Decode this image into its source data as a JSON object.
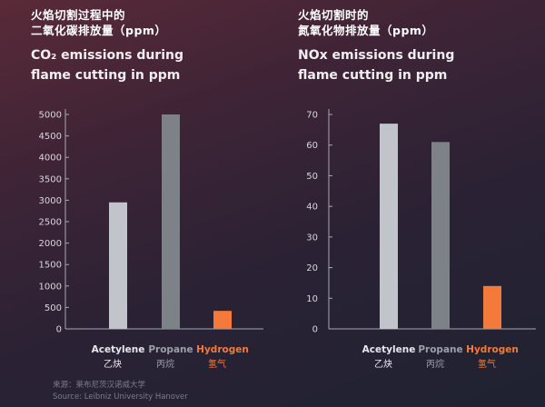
{
  "colors": {
    "acetylene": "#c2c4cc",
    "propane": "#7d8289",
    "hydrogen": "#f47a3c",
    "label_light": "#e8e8ec",
    "label_propane": "#9aa0a8",
    "label_hydrogen": "#f47a3c",
    "axis": "#a8a8b0"
  },
  "source": {
    "zh": "来源：莱布尼茨汉诺威大学",
    "en": "Source: Leibniz University Hanover"
  },
  "chart_data": [
    {
      "type": "bar",
      "title_zh": "火焰切割过程中的\n二氧化碳排放量（ppm）",
      "title_en": "CO₂ emissions during\nflame cutting in ppm",
      "categories": [
        "Acetylene",
        "Propane",
        "Hydrogen"
      ],
      "categories_zh": [
        "乙炔",
        "丙烷",
        "氢气"
      ],
      "values": [
        2950,
        5000,
        420
      ],
      "ylim": [
        0,
        5000
      ],
      "yticks": [
        0,
        500,
        1000,
        1500,
        2000,
        2500,
        3000,
        3500,
        4000,
        4500,
        5000
      ],
      "grid": false,
      "legend": "none"
    },
    {
      "type": "bar",
      "title_zh": "火焰切割时的\n氮氧化物排放量（ppm）",
      "title_en": "NOx emissions during\nflame cutting in ppm",
      "categories": [
        "Acetylene",
        "Propane",
        "Hydrogen"
      ],
      "categories_zh": [
        "乙炔",
        "丙烷",
        "氢气"
      ],
      "values": [
        67,
        61,
        14
      ],
      "ylim": [
        0,
        70
      ],
      "yticks": [
        0,
        10,
        20,
        30,
        40,
        50,
        60,
        70
      ],
      "grid": false,
      "legend": "none"
    }
  ]
}
